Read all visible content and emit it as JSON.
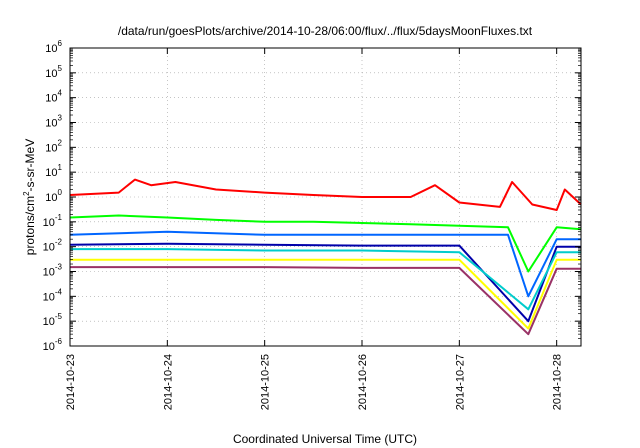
{
  "chart_data": {
    "type": "line",
    "title": "/data/run/goesPlots/archive/2014-10-28/06:00/flux/../flux/5daysMoonFluxes.txt",
    "xlabel": "Coordinated Universal Time (UTC)",
    "ylabel": "protons/cm²-s-sr-MeV",
    "ylabel_base": "protons/cm",
    "ylabel_sup": "2",
    "ylabel_rest": "-s-sr-MeV",
    "yscale": "log",
    "xlim": [
      "2014-10-23T00:00",
      "2014-10-28T06:00"
    ],
    "ylim": [
      1e-06,
      1000000.0
    ],
    "xticks": [
      "2014-10-23",
      "2014-10-24",
      "2014-10-25",
      "2014-10-26",
      "2014-10-27",
      "2014-10-28"
    ],
    "yticks": [
      {
        "base": "10",
        "exp": "-6"
      },
      {
        "base": "10",
        "exp": "-5"
      },
      {
        "base": "10",
        "exp": "-4"
      },
      {
        "base": "10",
        "exp": "-3"
      },
      {
        "base": "10",
        "exp": "-2"
      },
      {
        "base": "10",
        "exp": "-1"
      },
      {
        "base": "10",
        "exp": "0"
      },
      {
        "base": "10",
        "exp": "1"
      },
      {
        "base": "10",
        "exp": "2"
      },
      {
        "base": "10",
        "exp": "3"
      },
      {
        "base": "10",
        "exp": "4"
      },
      {
        "base": "10",
        "exp": "5"
      },
      {
        "base": "10",
        "exp": "6"
      }
    ],
    "grid": true,
    "series": [
      {
        "color": "#ff0000",
        "x": [
          "2014-10-23T00:00",
          "2014-10-23T12:00",
          "2014-10-23T16:00",
          "2014-10-23T20:00",
          "2014-10-24T02:00",
          "2014-10-24T12:00",
          "2014-10-25T00:00",
          "2014-10-25T12:00",
          "2014-10-26T00:00",
          "2014-10-26T12:00",
          "2014-10-26T18:00",
          "2014-10-27T00:00",
          "2014-10-27T10:00",
          "2014-10-27T13:00",
          "2014-10-27T18:00",
          "2014-10-28T00:00",
          "2014-10-28T02:00",
          "2014-10-28T06:00"
        ],
        "values": [
          1.2,
          1.5,
          5,
          3,
          4,
          2,
          1.5,
          1.2,
          1.0,
          1.0,
          3.0,
          0.6,
          0.4,
          4,
          0.5,
          0.3,
          2,
          0.5
        ]
      },
      {
        "color": "#00ff00",
        "x": [
          "2014-10-23T00:00",
          "2014-10-23T12:00",
          "2014-10-24T00:00",
          "2014-10-24T12:00",
          "2014-10-25T00:00",
          "2014-10-25T12:00",
          "2014-10-26T00:00",
          "2014-10-26T12:00",
          "2014-10-27T00:00",
          "2014-10-27T12:00",
          "2014-10-27T17:00",
          "2014-10-28T00:00",
          "2014-10-28T06:00"
        ],
        "values": [
          0.15,
          0.18,
          0.15,
          0.12,
          0.1,
          0.1,
          0.09,
          0.08,
          0.07,
          0.06,
          0.001,
          0.06,
          0.05
        ]
      },
      {
        "color": "#0066ff",
        "x": [
          "2014-10-23T00:00",
          "2014-10-24T00:00",
          "2014-10-25T00:00",
          "2014-10-26T00:00",
          "2014-10-27T00:00",
          "2014-10-27T12:00",
          "2014-10-27T17:00",
          "2014-10-28T00:00",
          "2014-10-28T06:00"
        ],
        "values": [
          0.03,
          0.04,
          0.03,
          0.03,
          0.03,
          0.03,
          0.0001,
          0.02,
          0.02
        ]
      },
      {
        "color": "#00cccc",
        "x": [
          "2014-10-23T00:00",
          "2014-10-24T00:00",
          "2014-10-25T00:00",
          "2014-10-26T00:00",
          "2014-10-27T00:00",
          "2014-10-27T17:00",
          "2014-10-28T00:00",
          "2014-10-28T06:00"
        ],
        "values": [
          0.008,
          0.008,
          0.007,
          0.007,
          0.006,
          3e-05,
          0.006,
          0.006
        ]
      },
      {
        "color": "#0000aa",
        "x": [
          "2014-10-23T00:00",
          "2014-10-24T00:00",
          "2014-10-25T00:00",
          "2014-10-26T00:00",
          "2014-10-27T00:00",
          "2014-10-27T17:00",
          "2014-10-28T00:00",
          "2014-10-28T06:00"
        ],
        "values": [
          0.012,
          0.013,
          0.012,
          0.011,
          0.011,
          1e-05,
          0.01,
          0.01
        ]
      },
      {
        "color": "#ffff00",
        "x": [
          "2014-10-23T00:00",
          "2014-10-24T00:00",
          "2014-10-25T00:00",
          "2014-10-26T00:00",
          "2014-10-27T00:00",
          "2014-10-27T17:00",
          "2014-10-28T00:00",
          "2014-10-28T06:00"
        ],
        "values": [
          0.003,
          0.003,
          0.003,
          0.003,
          0.003,
          5e-06,
          0.003,
          0.003
        ]
      },
      {
        "color": "#993366",
        "x": [
          "2014-10-23T00:00",
          "2014-10-24T00:00",
          "2014-10-25T00:00",
          "2014-10-26T00:00",
          "2014-10-27T00:00",
          "2014-10-27T17:00",
          "2014-10-28T00:00",
          "2014-10-28T06:00"
        ],
        "values": [
          0.0015,
          0.0015,
          0.0015,
          0.0014,
          0.0014,
          3e-06,
          0.0013,
          0.0013
        ]
      }
    ]
  }
}
